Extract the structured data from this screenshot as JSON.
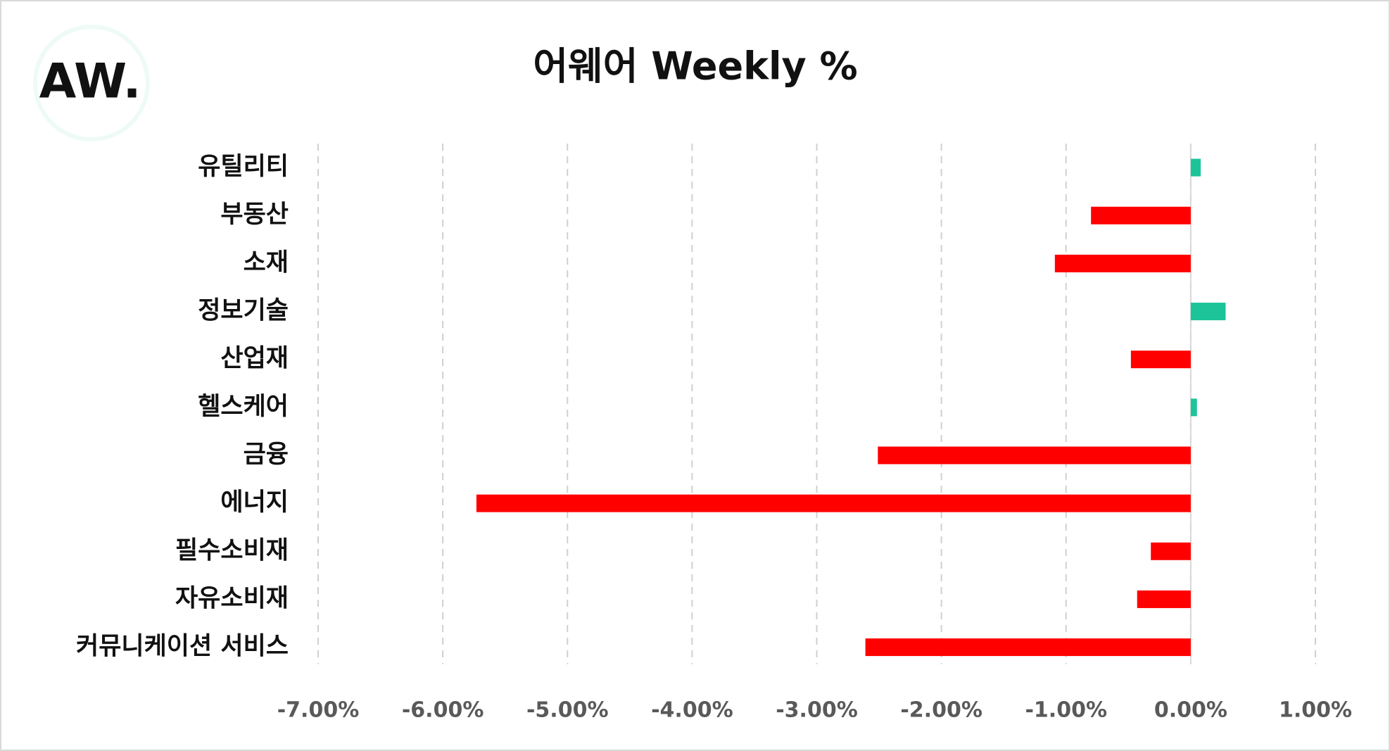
{
  "logo": "AW.",
  "chart_data": {
    "type": "barh",
    "title": "어웨어 Weekly %",
    "categories": [
      "유틸리티",
      "부동산",
      "소재",
      "정보기술",
      "산업재",
      "헬스케어",
      "금융",
      "에너지",
      "필수소비재",
      "자유소비재",
      "커뮤니케이션 서비스"
    ],
    "values": [
      0.08,
      -0.8,
      -1.09,
      0.28,
      -0.48,
      0.05,
      -2.51,
      -5.73,
      -0.32,
      -0.43,
      -2.61
    ],
    "color_positive": "#1dc49a",
    "color_negative": "#ff0000",
    "xlim": [
      -7,
      1
    ],
    "xticks": [
      {
        "value": -7,
        "label": "-7.00%"
      },
      {
        "value": -6,
        "label": "-6.00%"
      },
      {
        "value": -5,
        "label": "-5.00%"
      },
      {
        "value": -4,
        "label": "-4.00%"
      },
      {
        "value": -3,
        "label": "-3.00%"
      },
      {
        "value": -2,
        "label": "-2.00%"
      },
      {
        "value": -1,
        "label": "-1.00%"
      },
      {
        "value": 0,
        "label": "0.00%"
      },
      {
        "value": 1,
        "label": "1.00%"
      }
    ],
    "grid": true
  }
}
